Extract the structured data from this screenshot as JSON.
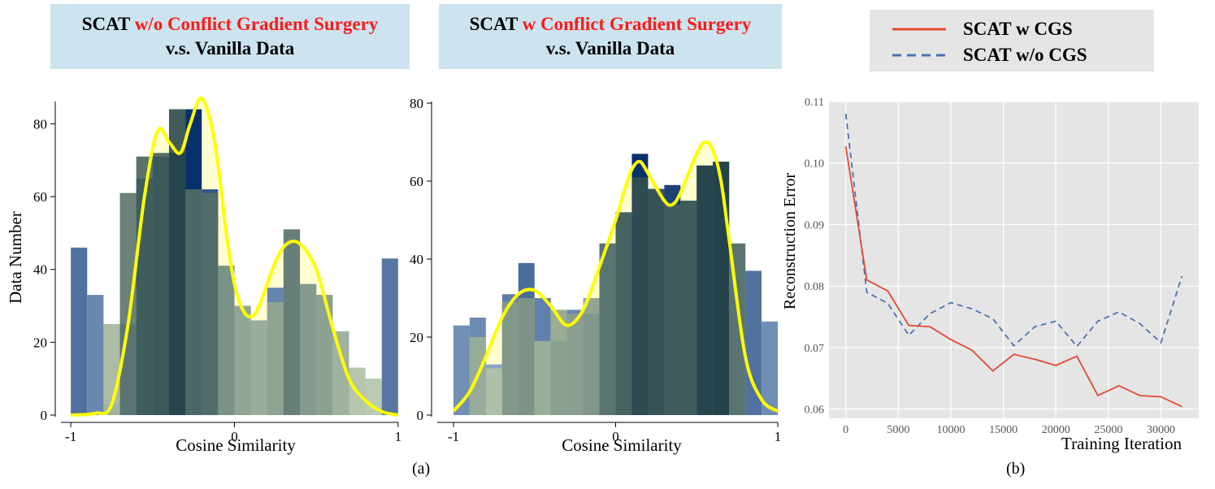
{
  "panel_titles": [
    {
      "prefix": "SCAT",
      "highlight": "w/o Conflict Gradient Surgery",
      "line2": "v.s. Vanilla Data"
    },
    {
      "prefix": "SCAT",
      "highlight": "w Conflict Gradient Surgery",
      "line2": "v.s. Vanilla Data"
    }
  ],
  "captions": {
    "a": "(a)",
    "b": "(b)"
  },
  "colors": {
    "title_bg": "#cce4ef",
    "highlight": "#ff1a1a",
    "kde": "#ffff00",
    "line_red": "#e24a33",
    "line_blue": "#4c72b0",
    "plot_bg": "#e5e5e5"
  },
  "chart_data": [
    {
      "type": "bar",
      "title": "SCAT w/o Conflict Gradient Surgery v.s. Vanilla Data",
      "xlabel": "Cosine Similarity",
      "ylabel": "Data Number",
      "xlim": [
        -1.1,
        1.1
      ],
      "ylim": [
        0,
        85
      ],
      "xticks": [
        -1,
        0,
        1
      ],
      "yticks": [
        0,
        20,
        40,
        60,
        80
      ],
      "bin_width": 0.1,
      "series": [
        {
          "name": "SCAT w/o CGS",
          "centers": [
            -0.95,
            -0.85,
            -0.75,
            -0.65,
            -0.55,
            -0.45,
            -0.35,
            -0.25,
            -0.15,
            -0.05,
            0.05,
            0.15,
            0.25,
            0.35,
            0.45,
            0.55,
            0.65,
            0.75,
            0.85,
            0.95
          ],
          "values": [
            46,
            33,
            3,
            25,
            65,
            71,
            72,
            84,
            62,
            41,
            30,
            26,
            35,
            51,
            36,
            33,
            23,
            13,
            10,
            43
          ]
        },
        {
          "name": "Vanilla Data",
          "centers": [
            -0.75,
            -0.65,
            -0.55,
            -0.45,
            -0.35,
            -0.25,
            -0.15,
            -0.05,
            0.05,
            0.15,
            0.25,
            0.35,
            0.45,
            0.55,
            0.65,
            0.75,
            0.85
          ],
          "values": [
            25,
            61,
            71,
            72,
            84,
            62,
            61,
            41,
            30,
            26,
            31,
            51,
            36,
            33,
            23,
            13,
            10
          ]
        }
      ],
      "kde": {
        "x": [
          -1.0,
          -0.85,
          -0.75,
          -0.65,
          -0.55,
          -0.47,
          -0.4,
          -0.33,
          -0.27,
          -0.2,
          -0.12,
          -0.05,
          0.0,
          0.05,
          0.1,
          0.15,
          0.25,
          0.32,
          0.4,
          0.5,
          0.6,
          0.7,
          0.8,
          0.9,
          1.0
        ],
        "y": [
          0,
          0.5,
          3,
          25,
          60,
          78,
          75,
          72,
          80,
          87,
          75,
          50,
          36,
          29,
          27,
          30,
          42,
          47,
          47,
          40,
          24,
          10,
          4,
          1,
          0
        ]
      }
    },
    {
      "type": "bar",
      "title": "SCAT w Conflict Gradient Surgery v.s. Vanilla Data",
      "xlabel": "Cosine Similarity",
      "ylabel": "",
      "xlim": [
        -1.1,
        1.1
      ],
      "ylim": [
        0,
        80
      ],
      "xticks": [
        -1,
        0,
        1
      ],
      "yticks": [
        0,
        20,
        40,
        60,
        80
      ],
      "bin_width": 0.1,
      "series": [
        {
          "name": "SCAT w CGS",
          "centers": [
            -0.95,
            -0.85,
            -0.75,
            -0.65,
            -0.55,
            -0.45,
            -0.35,
            -0.25,
            -0.15,
            -0.05,
            0.05,
            0.15,
            0.25,
            0.35,
            0.45,
            0.55,
            0.65,
            0.75,
            0.85,
            0.95
          ],
          "values": [
            23,
            25,
            13,
            31,
            39,
            30,
            19,
            27,
            26,
            44,
            52,
            67,
            58,
            59,
            55,
            64,
            65,
            44,
            37,
            24
          ]
        },
        {
          "name": "Vanilla Data",
          "centers": [
            -0.85,
            -0.75,
            -0.65,
            -0.55,
            -0.45,
            -0.35,
            -0.25,
            -0.15,
            -0.05,
            0.05,
            0.15,
            0.25,
            0.35,
            0.45,
            0.55,
            0.65,
            0.75
          ],
          "values": [
            20,
            12,
            29,
            30,
            19,
            27,
            26,
            30,
            44,
            52,
            61,
            58,
            54,
            55,
            64,
            65,
            44
          ]
        }
      ],
      "kde": {
        "x": [
          -1.0,
          -0.9,
          -0.8,
          -0.7,
          -0.6,
          -0.5,
          -0.4,
          -0.3,
          -0.2,
          -0.1,
          0.0,
          0.05,
          0.1,
          0.15,
          0.2,
          0.3,
          0.35,
          0.4,
          0.5,
          0.55,
          0.6,
          0.65,
          0.7,
          0.8,
          0.9,
          1.0
        ],
        "y": [
          1,
          6,
          15,
          25,
          31,
          32,
          28,
          23,
          27,
          38,
          50,
          57,
          63,
          65,
          62,
          55,
          54,
          57,
          67,
          70,
          68,
          60,
          45,
          15,
          4,
          1
        ]
      }
    },
    {
      "type": "line",
      "title": "",
      "xlabel": "Training Iteration",
      "ylabel": "Reconstruction Error",
      "xlim": [
        -1600,
        33600
      ],
      "ylim": [
        0.0585,
        0.11
      ],
      "xticks": [
        0,
        5000,
        10000,
        15000,
        20000,
        25000,
        30000
      ],
      "yticks": [
        0.06,
        0.07,
        0.08,
        0.09,
        0.1,
        0.11
      ],
      "ytick_labels": [
        "0.06",
        "0.07",
        "0.08",
        "0.09",
        "0.10",
        "0.11"
      ],
      "legend": "top",
      "series": [
        {
          "name": "SCAT w CGS",
          "x": [
            0,
            2000,
            4000,
            6000,
            8000,
            10000,
            12000,
            14000,
            16000,
            18000,
            20000,
            22000,
            24000,
            26000,
            28000,
            30000,
            32000
          ],
          "y": [
            0.1027,
            0.081,
            0.0792,
            0.0736,
            0.0734,
            0.0713,
            0.0696,
            0.0662,
            0.0689,
            0.0681,
            0.0671,
            0.0686,
            0.0622,
            0.0638,
            0.0622,
            0.062,
            0.0604
          ]
        },
        {
          "name": "SCAT w/o CGS",
          "x": [
            0,
            2000,
            4000,
            6000,
            8000,
            10000,
            12000,
            14000,
            16000,
            18000,
            20000,
            22000,
            24000,
            26000,
            28000,
            30000,
            32000
          ],
          "y": [
            0.108,
            0.079,
            0.0772,
            0.072,
            0.0755,
            0.0773,
            0.0763,
            0.0747,
            0.0703,
            0.0734,
            0.0743,
            0.0702,
            0.0743,
            0.0758,
            0.0739,
            0.0708,
            0.0816
          ]
        }
      ]
    }
  ]
}
